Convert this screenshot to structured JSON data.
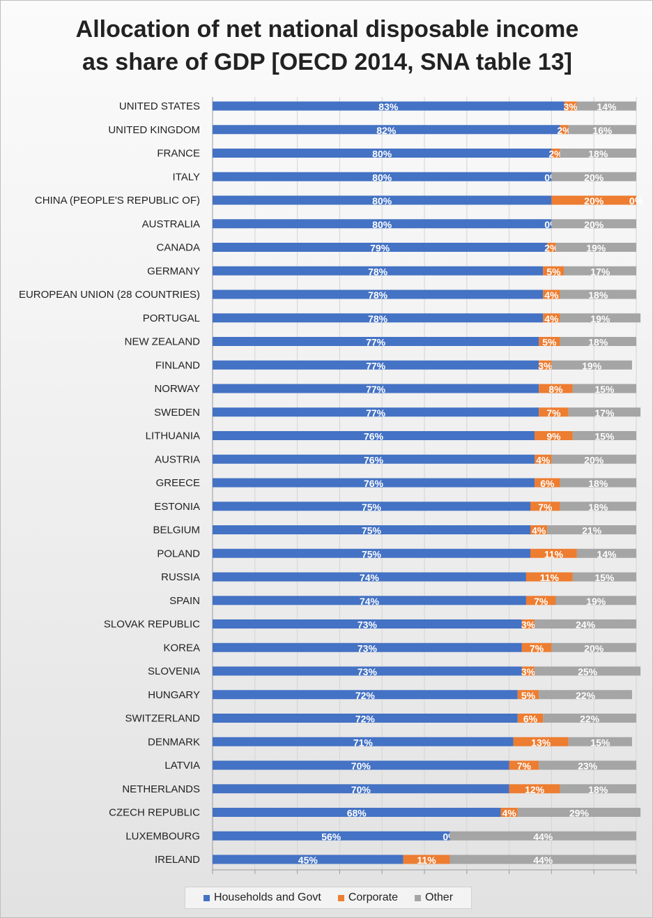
{
  "chart_data": {
    "type": "bar",
    "orientation": "horizontal",
    "stacked": true,
    "title_lines": [
      "Allocation of net national disposable income",
      "as share of GDP [OECD 2014, SNA table 13]"
    ],
    "xlim": [
      0,
      100
    ],
    "grid": "vertical",
    "legend_position": "bottom",
    "categories": [
      "UNITED STATES",
      "UNITED KINGDOM",
      "FRANCE",
      "ITALY",
      "CHINA (PEOPLE'S REPUBLIC OF)",
      "AUSTRALIA",
      "CANADA",
      "GERMANY",
      "EUROPEAN UNION (28 COUNTRIES)",
      "PORTUGAL",
      "NEW ZEALAND",
      "FINLAND",
      "NORWAY",
      "SWEDEN",
      "LITHUANIA",
      "AUSTRIA",
      "GREECE",
      "ESTONIA",
      "BELGIUM",
      "POLAND",
      "RUSSIA",
      "SPAIN",
      "SLOVAK REPUBLIC",
      "KOREA",
      "SLOVENIA",
      "HUNGARY",
      "SWITZERLAND",
      "DENMARK",
      "LATVIA",
      "NETHERLANDS",
      "CZECH REPUBLIC",
      "LUXEMBOURG",
      "IRELAND"
    ],
    "series": [
      {
        "name": "Households and Govt",
        "color": "#4472c4",
        "values": [
          83,
          82,
          80,
          80,
          80,
          80,
          79,
          78,
          78,
          78,
          77,
          77,
          77,
          77,
          76,
          76,
          76,
          75,
          75,
          75,
          74,
          74,
          73,
          73,
          73,
          72,
          72,
          71,
          70,
          70,
          68,
          56,
          45
        ],
        "labels": [
          "83%",
          "82%",
          "80%",
          "80%",
          "80%",
          "80%",
          "79%",
          "78%",
          "78%",
          "78%",
          "77%",
          "77%",
          "77%",
          "77%",
          "76%",
          "76%",
          "76%",
          "75%",
          "75%",
          "75%",
          "74%",
          "74%",
          "73%",
          "73%",
          "73%",
          "72%",
          "72%",
          "71%",
          "70%",
          "70%",
          "68%",
          "56%",
          "45%"
        ]
      },
      {
        "name": "Corporate",
        "color": "#ed7d31",
        "values": [
          3,
          2,
          2,
          0,
          20,
          0,
          2,
          5,
          4,
          4,
          5,
          3,
          8,
          7,
          9,
          4,
          6,
          7,
          4,
          11,
          11,
          7,
          3,
          7,
          3,
          5,
          6,
          13,
          7,
          12,
          4,
          0,
          11
        ],
        "labels": [
          "3%",
          "2%",
          "2%",
          "0%",
          "20%",
          "0%",
          "2%",
          "5%",
          "4%",
          "4%",
          "5%",
          "3%",
          "8%",
          "7%",
          "9%",
          "4%",
          "6%",
          "7%",
          "4%",
          "11%",
          "11%",
          "7%",
          "3%",
          "7%",
          "3%",
          "5%",
          "6%",
          "13%",
          "7%",
          "12%",
          "4%",
          "0%",
          "11%"
        ]
      },
      {
        "name": "Other",
        "color": "#a5a5a5",
        "values": [
          14,
          16,
          18,
          20,
          0,
          20,
          19,
          17,
          18,
          19,
          18,
          19,
          15,
          17,
          15,
          20,
          18,
          18,
          21,
          14,
          15,
          19,
          24,
          20,
          25,
          22,
          22,
          15,
          23,
          18,
          29,
          44,
          44
        ],
        "labels": [
          "14%",
          "16%",
          "18%",
          "20%",
          "0%",
          "20%",
          "19%",
          "17%",
          "18%",
          "19%",
          "18%",
          "19%",
          "15%",
          "17%",
          "15%",
          "20%",
          "18%",
          "18%",
          "21%",
          "14%",
          "15%",
          "19%",
          "24%",
          "20%",
          "25%",
          "22%",
          "22%",
          "15%",
          "23%",
          "18%",
          "29%",
          "44%",
          "44%"
        ]
      }
    ],
    "legend": [
      "Households and Govt",
      "Corporate",
      "Other"
    ]
  }
}
